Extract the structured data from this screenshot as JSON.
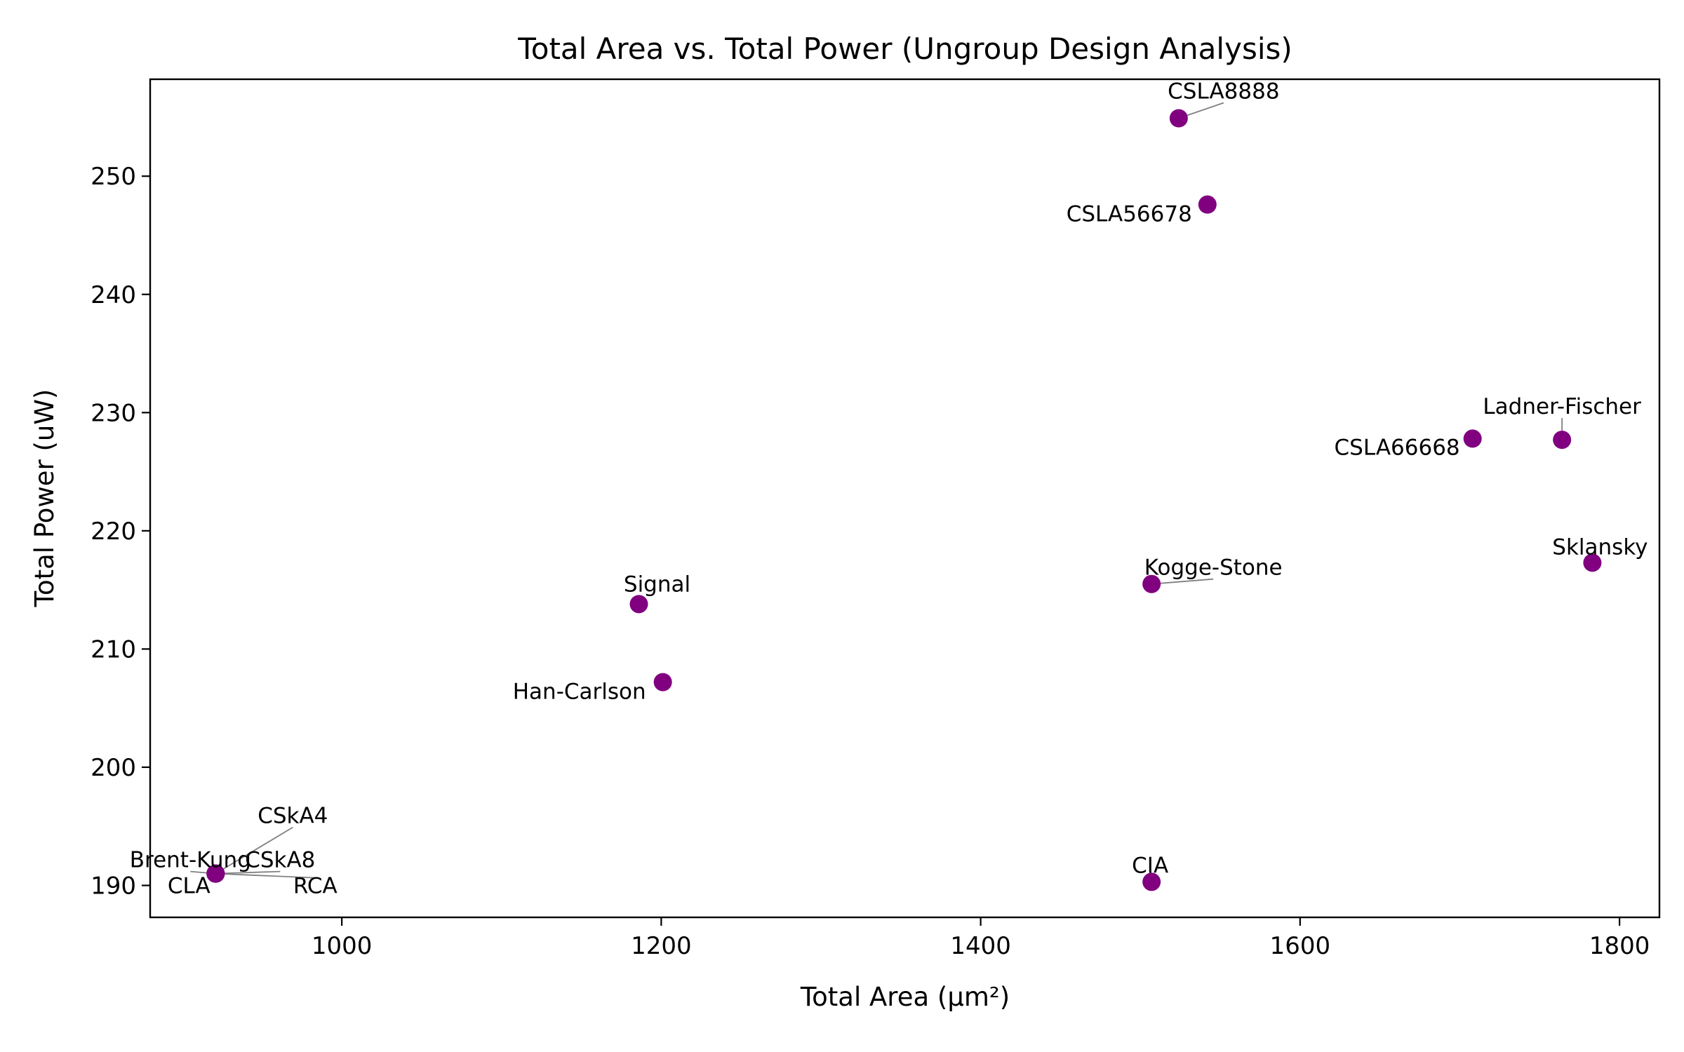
{
  "chart_data": {
    "type": "scatter",
    "title": "Total Area vs. Total Power (Ungroup Design Analysis)",
    "xlabel": "Total Area (μm²)",
    "ylabel": "Total Power (uW)",
    "xlim": [
      880,
      1825
    ],
    "ylim": [
      187.3,
      258.2
    ],
    "xticks": [
      1000,
      1200,
      1400,
      1600,
      1800
    ],
    "yticks": [
      190,
      200,
      210,
      220,
      230,
      240,
      250
    ],
    "grid": false,
    "marker_color": "#800080",
    "points": [
      {
        "label": "CSLA8888",
        "x": 1524,
        "y": 254.9
      },
      {
        "label": "CSLA56678",
        "x": 1542,
        "y": 247.6
      },
      {
        "label": "Ladner-Fischer",
        "x": 1764,
        "y": 227.7
      },
      {
        "label": "CSLA66668",
        "x": 1708,
        "y": 227.8
      },
      {
        "label": "Sklansky",
        "x": 1783,
        "y": 217.3
      },
      {
        "label": "Kogge-Stone",
        "x": 1507,
        "y": 215.5
      },
      {
        "label": "Signal",
        "x": 1186,
        "y": 213.8
      },
      {
        "label": "Han-Carlson",
        "x": 1201,
        "y": 207.2
      },
      {
        "label": "CIA",
        "x": 1507,
        "y": 190.3
      },
      {
        "label": "CSkA4",
        "x": 921,
        "y": 191.0
      },
      {
        "label": "Brent-Kung",
        "x": 921,
        "y": 191.0
      },
      {
        "label": "CSkA8",
        "x": 921,
        "y": 191.0
      },
      {
        "label": "CLA",
        "x": 921,
        "y": 191.0
      },
      {
        "label": "RCA",
        "x": 921,
        "y": 191.0
      }
    ]
  }
}
